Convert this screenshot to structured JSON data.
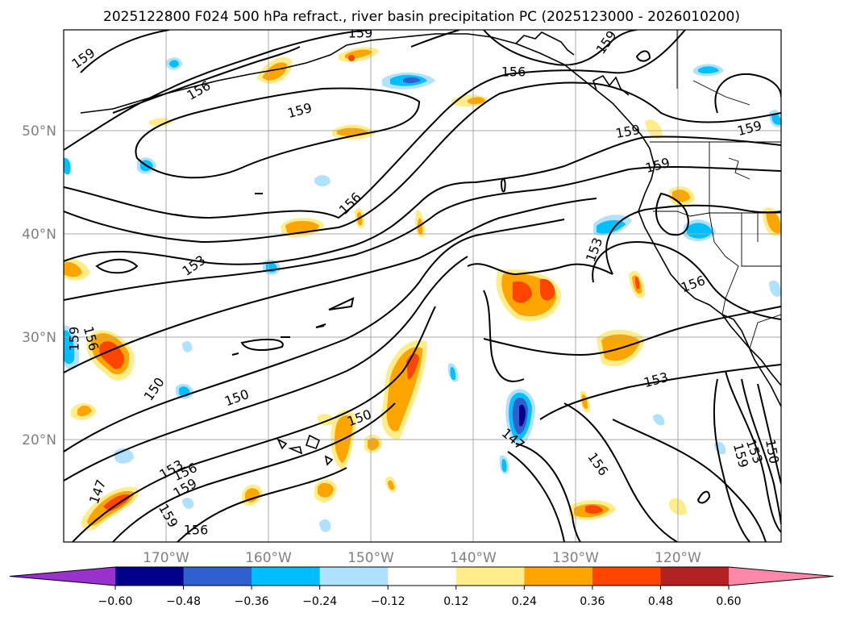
{
  "title": "2025122800 F024 500 hPa refract., river basin precipitation PC (2025123000 - 2026010200)",
  "lat_labels": [
    "50°N",
    "40°N",
    "30°N",
    "20°N"
  ],
  "lon_labels": [
    "170°W",
    "160°W",
    "150°W",
    "140°W",
    "130°W",
    "120°W"
  ],
  "contour_labels": [
    "159",
    "159",
    "156",
    "159",
    "156",
    "159",
    "159",
    "159",
    "159",
    "156",
    "153",
    "153",
    "156",
    "159",
    "156",
    "150",
    "150",
    "153",
    "150",
    "147",
    "156",
    "153",
    "156",
    "159",
    "156",
    "147",
    "159",
    "159",
    "153",
    "150"
  ],
  "colorbar": {
    "tick_labels": [
      "−0.60",
      "−0.48",
      "−0.36",
      "−0.24",
      "−0.12",
      "0.12",
      "0.24",
      "0.36",
      "0.48",
      "0.60"
    ],
    "colors": [
      "#9932cc",
      "#00008b",
      "#3060d0",
      "#00bfff",
      "#b0e2ff",
      "#ffffff",
      "#ffec8b",
      "#ffa500",
      "#ff4500",
      "#b22222",
      "#ff88aa"
    ]
  }
}
